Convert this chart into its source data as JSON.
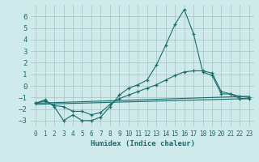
{
  "title": "",
  "xlabel": "Humidex (Indice chaleur)",
  "ylabel": "",
  "background_color": "#ceeaea",
  "grid_color": "#aec8c8",
  "line_color": "#1a6b6b",
  "xlim": [
    -0.5,
    23.5
  ],
  "ylim": [
    -3.5,
    7.0
  ],
  "xticks": [
    0,
    1,
    2,
    3,
    4,
    5,
    6,
    7,
    8,
    9,
    10,
    11,
    12,
    13,
    14,
    15,
    16,
    17,
    18,
    19,
    20,
    21,
    22,
    23
  ],
  "yticks": [
    -3,
    -2,
    -1,
    0,
    1,
    2,
    3,
    4,
    5,
    6
  ],
  "series": [
    {
      "x": [
        0,
        1,
        2,
        3,
        4,
        5,
        6,
        7,
        8,
        9,
        10,
        11,
        12,
        13,
        14,
        15,
        16,
        17,
        18,
        19,
        20,
        21,
        22,
        23
      ],
      "y": [
        -1.5,
        -1.2,
        -1.8,
        -3.0,
        -2.5,
        -3.0,
        -3.0,
        -2.7,
        -1.8,
        -0.8,
        -0.2,
        0.1,
        0.5,
        1.8,
        3.5,
        5.3,
        6.6,
        4.5,
        1.2,
        0.9,
        -0.7,
        -0.7,
        -1.1,
        -1.1
      ],
      "marker": true
    },
    {
      "x": [
        0,
        1,
        2,
        3,
        4,
        5,
        6,
        7,
        8,
        9,
        10,
        11,
        12,
        13,
        14,
        15,
        16,
        17,
        18,
        19,
        20,
        21,
        22,
        23
      ],
      "y": [
        -1.5,
        -1.3,
        -1.7,
        -1.8,
        -2.2,
        -2.2,
        -2.5,
        -2.3,
        -1.6,
        -1.1,
        -0.8,
        -0.5,
        -0.2,
        0.1,
        0.5,
        0.9,
        1.2,
        1.3,
        1.3,
        1.1,
        -0.5,
        -0.7,
        -0.9,
        -1.0
      ],
      "marker": true
    },
    {
      "x": [
        0,
        23
      ],
      "y": [
        -1.5,
        -0.9
      ],
      "marker": false
    },
    {
      "x": [
        0,
        23
      ],
      "y": [
        -1.6,
        -1.1
      ],
      "marker": false
    }
  ]
}
